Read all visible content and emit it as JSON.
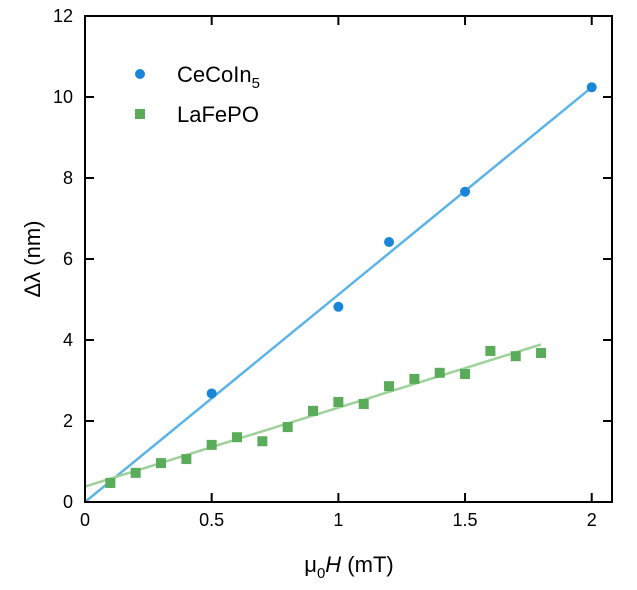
{
  "chart_data": {
    "type": "scatter",
    "title": "",
    "xlabel": "μ0H (mT)",
    "xlabel_parts": {
      "mu": "μ",
      "sub": "0",
      "var": "H",
      "unit": " (mT)"
    },
    "ylabel": "Δλ (nm)",
    "xlim": [
      0,
      2.08
    ],
    "ylim": [
      0,
      12
    ],
    "xticks": [
      0,
      0.5,
      1,
      1.5,
      2
    ],
    "xtick_labels": [
      "0",
      "0.5",
      "1",
      "1.5",
      "2"
    ],
    "yticks": [
      0,
      2,
      4,
      6,
      8,
      10,
      12
    ],
    "ytick_labels": [
      "0",
      "2",
      "4",
      "6",
      "8",
      "10",
      "12"
    ],
    "grid": false,
    "legend_position": "top-left",
    "series": [
      {
        "name": "CeCoIn5",
        "legend_main": "CeCoIn",
        "legend_sub": "5",
        "marker": "circle",
        "color": "#1a86d8",
        "fit_color": "#5bb4e8",
        "x": [
          0.5,
          1.0,
          1.2,
          1.5,
          2.0
        ],
        "y": [
          2.68,
          4.82,
          6.42,
          7.66,
          10.24
        ],
        "fit": {
          "slope": 5.12,
          "intercept": 0.0,
          "x_range": [
            0,
            2.0
          ]
        }
      },
      {
        "name": "LaFePO",
        "legend_main": "LaFePO",
        "legend_sub": "",
        "marker": "square",
        "color": "#5aab5a",
        "fit_color": "#9fd19a",
        "x": [
          0.1,
          0.2,
          0.3,
          0.4,
          0.5,
          0.6,
          0.7,
          0.8,
          0.9,
          1.0,
          1.1,
          1.2,
          1.3,
          1.4,
          1.5,
          1.6,
          1.7,
          1.8
        ],
        "y": [
          0.47,
          0.72,
          0.96,
          1.06,
          1.41,
          1.6,
          1.5,
          1.85,
          2.25,
          2.47,
          2.42,
          2.86,
          3.04,
          3.19,
          3.16,
          3.73,
          3.6,
          3.68
        ],
        "fit": {
          "slope": 1.95,
          "intercept": 0.38,
          "x_range": [
            0,
            1.8
          ]
        }
      }
    ]
  }
}
